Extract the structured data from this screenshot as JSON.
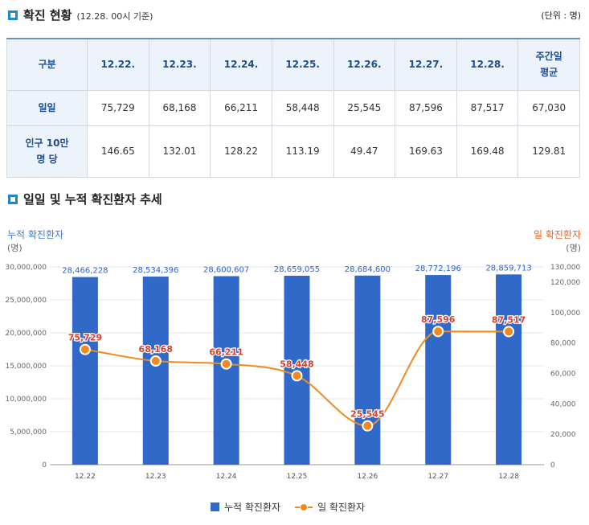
{
  "summary": {
    "title": "확진 현황",
    "subtitle": "(12.28. 00시 기준)",
    "unit": "(단위 : 명)",
    "corner_header": "구분",
    "date_headers": [
      "12.22.",
      "12.23.",
      "12.24.",
      "12.25.",
      "12.26.",
      "12.27.",
      "12.28."
    ],
    "avg_header": [
      "주간일",
      "평균"
    ],
    "rows": [
      {
        "label": [
          "일일"
        ],
        "values": [
          "75,729",
          "68,168",
          "66,211",
          "58,448",
          "25,545",
          "87,596",
          "87,517",
          "67,030"
        ]
      },
      {
        "label": [
          "인구 10만",
          "명 당"
        ],
        "values": [
          "146.65",
          "132.01",
          "128.22",
          "113.19",
          "49.47",
          "169.63",
          "169.48",
          "129.81"
        ]
      }
    ]
  },
  "trend": {
    "title": "일일 및 누적 확진환자 추세",
    "left_axis_label": "누적 확진환자",
    "left_axis_unit": "(명)",
    "right_axis_label": "일 확진환자",
    "right_axis_unit": "(명)",
    "legend": [
      "누적 확진환자",
      "일 확진환자"
    ]
  },
  "colors": {
    "bar": "#3169c9",
    "line": "#f08a1c",
    "bar_label": "#2d62c4",
    "line_label": "#d7402a",
    "axis_title_left": "#3f7ad1",
    "axis_title_right": "#e5662a",
    "header_text": "#1d4e91",
    "icon": "#1e88c9"
  },
  "chart_data": {
    "type": "bar+line",
    "categories": [
      "12.22",
      "12.23",
      "12.24",
      "12.25",
      "12.26",
      "12.27",
      "12.28"
    ],
    "series": [
      {
        "name": "누적 확진환자",
        "type": "bar",
        "axis": "left",
        "values": [
          28466228,
          28534396,
          28600607,
          28659055,
          28684600,
          28772196,
          28859713
        ],
        "labels": [
          "28,466,228",
          "28,534,396",
          "28,600,607",
          "28,659,055",
          "28,684,600",
          "28,772,196",
          "28,859,713"
        ]
      },
      {
        "name": "일 확진환자",
        "type": "line",
        "axis": "right",
        "values": [
          75729,
          68168,
          66211,
          58448,
          25545,
          87596,
          87517
        ],
        "labels": [
          "75,729",
          "68,168",
          "66,211",
          "58,448",
          "25,545",
          "87,596",
          "87,517"
        ]
      }
    ],
    "left_axis": {
      "range": [
        0,
        30000000
      ],
      "ticks": [
        0,
        5000000,
        10000000,
        15000000,
        20000000,
        25000000,
        30000000
      ],
      "tick_labels": [
        "0",
        "5,000,000",
        "10,000,000",
        "15,000,000",
        "20,000,000",
        "25,000,000",
        "30,000,000"
      ]
    },
    "right_axis": {
      "range": [
        0,
        130000
      ],
      "ticks": [
        0,
        20000,
        40000,
        60000,
        80000,
        100000,
        120000,
        130000
      ],
      "tick_labels": [
        "0",
        "20,000",
        "40,000",
        "60,000",
        "80,000",
        "100,000",
        "120,000",
        "130,000"
      ]
    },
    "grid": true,
    "legend_position": "bottom"
  }
}
